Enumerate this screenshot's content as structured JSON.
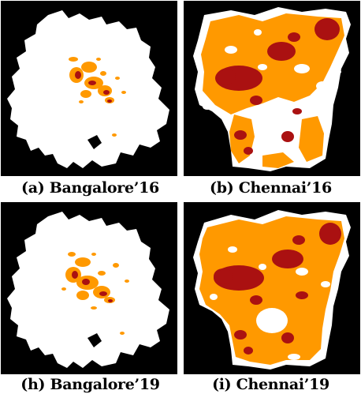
{
  "colors": {
    "background": "#000000",
    "region": "#ffffff",
    "medium": "#ff9900",
    "high": "#aa1111"
  },
  "panels": [
    {
      "id": "a",
      "caption": "(a) Bangalore’16"
    },
    {
      "id": "b",
      "caption": "(b) Chennai’16"
    },
    {
      "id": "h",
      "caption": "(h) Bangalore’19"
    },
    {
      "id": "i",
      "caption": "(i) Chennai’19"
    }
  ]
}
